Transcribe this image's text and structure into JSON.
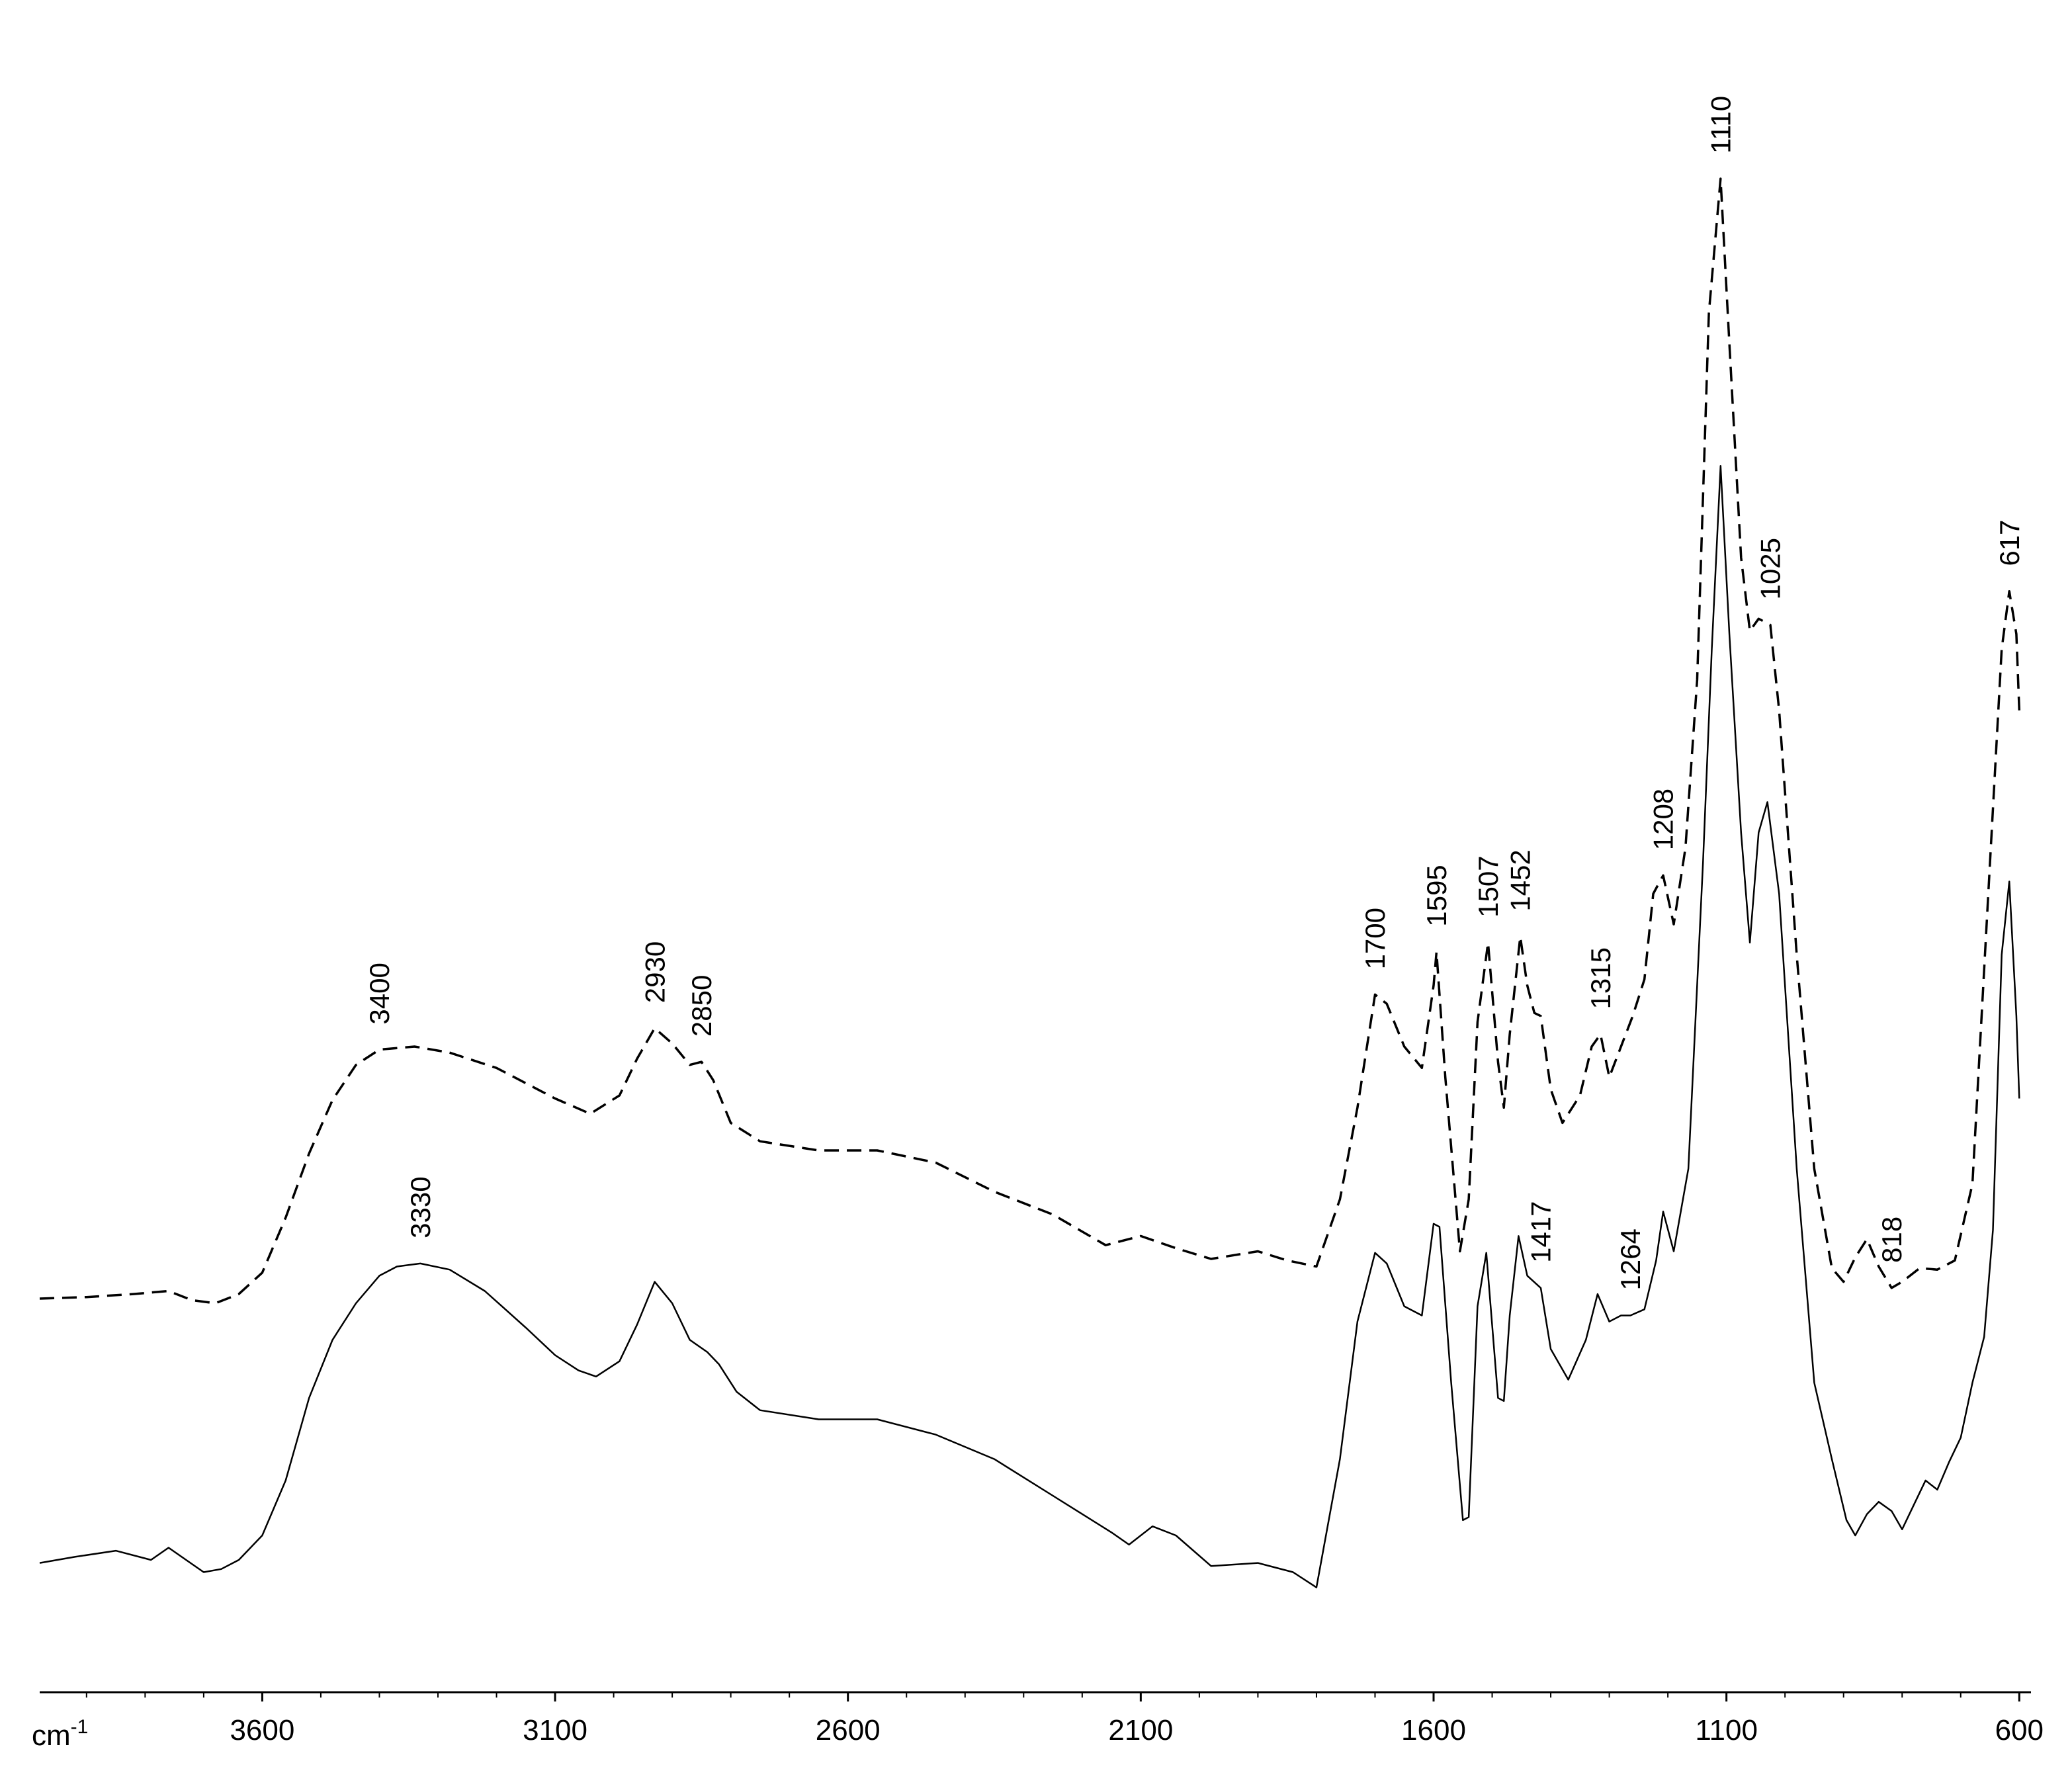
{
  "chart_data": {
    "type": "line",
    "title": "",
    "xlabel": "",
    "ylabel": "",
    "x_unit": {
      "base": "cm",
      "exp": "-1"
    },
    "xlim": [
      3980,
      580
    ],
    "ylim": [
      -0.04,
      1.0
    ],
    "x_reversed": true,
    "x_ticks": [
      {
        "value": 3600,
        "label": "3600"
      },
      {
        "value": 3100,
        "label": "3100"
      },
      {
        "value": 2600,
        "label": "2600"
      },
      {
        "value": 2100,
        "label": "2100"
      },
      {
        "value": 1600,
        "label": "1600"
      },
      {
        "value": 1100,
        "label": "1100"
      },
      {
        "value": 600,
        "label": "600"
      }
    ],
    "grid": false,
    "legend": "none",
    "series": [
      {
        "style": "dashed",
        "color": "#000000",
        "points": [
          [
            3980,
            0.215
          ],
          [
            3900,
            0.216
          ],
          [
            3820,
            0.218
          ],
          [
            3760,
            0.22
          ],
          [
            3720,
            0.214
          ],
          [
            3680,
            0.212
          ],
          [
            3640,
            0.218
          ],
          [
            3600,
            0.232
          ],
          [
            3560,
            0.268
          ],
          [
            3520,
            0.31
          ],
          [
            3480,
            0.345
          ],
          [
            3440,
            0.368
          ],
          [
            3400,
            0.378
          ],
          [
            3340,
            0.38
          ],
          [
            3280,
            0.376
          ],
          [
            3200,
            0.366
          ],
          [
            3100,
            0.346
          ],
          [
            3040,
            0.336
          ],
          [
            2990,
            0.348
          ],
          [
            2960,
            0.372
          ],
          [
            2930,
            0.392
          ],
          [
            2900,
            0.382
          ],
          [
            2870,
            0.368
          ],
          [
            2850,
            0.37
          ],
          [
            2830,
            0.358
          ],
          [
            2800,
            0.33
          ],
          [
            2750,
            0.318
          ],
          [
            2650,
            0.312
          ],
          [
            2550,
            0.312
          ],
          [
            2450,
            0.304
          ],
          [
            2350,
            0.285
          ],
          [
            2250,
            0.27
          ],
          [
            2160,
            0.25
          ],
          [
            2100,
            0.256
          ],
          [
            2040,
            0.248
          ],
          [
            1980,
            0.241
          ],
          [
            1900,
            0.246
          ],
          [
            1850,
            0.24
          ],
          [
            1800,
            0.236
          ],
          [
            1760,
            0.28
          ],
          [
            1730,
            0.34
          ],
          [
            1700,
            0.414
          ],
          [
            1680,
            0.408
          ],
          [
            1650,
            0.38
          ],
          [
            1620,
            0.366
          ],
          [
            1600,
            0.42
          ],
          [
            1595,
            0.442
          ],
          [
            1580,
            0.36
          ],
          [
            1555,
            0.246
          ],
          [
            1540,
            0.28
          ],
          [
            1525,
            0.396
          ],
          [
            1507,
            0.448
          ],
          [
            1490,
            0.37
          ],
          [
            1480,
            0.34
          ],
          [
            1470,
            0.388
          ],
          [
            1452,
            0.452
          ],
          [
            1440,
            0.42
          ],
          [
            1428,
            0.402
          ],
          [
            1417,
            0.4
          ],
          [
            1400,
            0.352
          ],
          [
            1380,
            0.33
          ],
          [
            1350,
            0.348
          ],
          [
            1330,
            0.38
          ],
          [
            1315,
            0.388
          ],
          [
            1300,
            0.36
          ],
          [
            1280,
            0.38
          ],
          [
            1260,
            0.4
          ],
          [
            1240,
            0.424
          ],
          [
            1225,
            0.48
          ],
          [
            1208,
            0.492
          ],
          [
            1190,
            0.46
          ],
          [
            1170,
            0.51
          ],
          [
            1150,
            0.62
          ],
          [
            1130,
            0.86
          ],
          [
            1110,
            0.948
          ],
          [
            1095,
            0.84
          ],
          [
            1075,
            0.7
          ],
          [
            1060,
            0.652
          ],
          [
            1045,
            0.66
          ],
          [
            1025,
            0.656
          ],
          [
            1010,
            0.6
          ],
          [
            980,
            0.44
          ],
          [
            950,
            0.3
          ],
          [
            920,
            0.235
          ],
          [
            900,
            0.226
          ],
          [
            880,
            0.242
          ],
          [
            860,
            0.254
          ],
          [
            840,
            0.236
          ],
          [
            818,
            0.222
          ],
          [
            800,
            0.226
          ],
          [
            770,
            0.235
          ],
          [
            740,
            0.234
          ],
          [
            710,
            0.24
          ],
          [
            680,
            0.29
          ],
          [
            650,
            0.5
          ],
          [
            630,
            0.64
          ],
          [
            617,
            0.678
          ],
          [
            605,
            0.65
          ],
          [
            600,
            0.6
          ]
        ]
      },
      {
        "style": "solid",
        "color": "#000000",
        "points": [
          [
            3980,
            0.042
          ],
          [
            3920,
            0.046
          ],
          [
            3850,
            0.05
          ],
          [
            3790,
            0.044
          ],
          [
            3760,
            0.052
          ],
          [
            3730,
            0.044
          ],
          [
            3700,
            0.036
          ],
          [
            3670,
            0.038
          ],
          [
            3640,
            0.044
          ],
          [
            3600,
            0.06
          ],
          [
            3560,
            0.096
          ],
          [
            3520,
            0.15
          ],
          [
            3480,
            0.188
          ],
          [
            3440,
            0.212
          ],
          [
            3400,
            0.23
          ],
          [
            3370,
            0.236
          ],
          [
            3330,
            0.238
          ],
          [
            3280,
            0.234
          ],
          [
            3220,
            0.22
          ],
          [
            3150,
            0.196
          ],
          [
            3100,
            0.178
          ],
          [
            3060,
            0.168
          ],
          [
            3030,
            0.164
          ],
          [
            2990,
            0.174
          ],
          [
            2960,
            0.198
          ],
          [
            2930,
            0.226
          ],
          [
            2900,
            0.212
          ],
          [
            2870,
            0.188
          ],
          [
            2840,
            0.18
          ],
          [
            2820,
            0.172
          ],
          [
            2790,
            0.154
          ],
          [
            2750,
            0.142
          ],
          [
            2650,
            0.136
          ],
          [
            2550,
            0.136
          ],
          [
            2450,
            0.126
          ],
          [
            2350,
            0.11
          ],
          [
            2250,
            0.086
          ],
          [
            2150,
            0.062
          ],
          [
            2120,
            0.054
          ],
          [
            2080,
            0.066
          ],
          [
            2040,
            0.06
          ],
          [
            1980,
            0.04
          ],
          [
            1900,
            0.042
          ],
          [
            1840,
            0.036
          ],
          [
            1800,
            0.026
          ],
          [
            1760,
            0.11
          ],
          [
            1730,
            0.2
          ],
          [
            1700,
            0.245
          ],
          [
            1680,
            0.238
          ],
          [
            1650,
            0.21
          ],
          [
            1620,
            0.204
          ],
          [
            1600,
            0.264
          ],
          [
            1590,
            0.262
          ],
          [
            1570,
            0.16
          ],
          [
            1550,
            0.07
          ],
          [
            1540,
            0.072
          ],
          [
            1525,
            0.21
          ],
          [
            1510,
            0.245
          ],
          [
            1490,
            0.15
          ],
          [
            1480,
            0.148
          ],
          [
            1470,
            0.204
          ],
          [
            1455,
            0.256
          ],
          [
            1440,
            0.23
          ],
          [
            1417,
            0.222
          ],
          [
            1400,
            0.182
          ],
          [
            1370,
            0.162
          ],
          [
            1340,
            0.188
          ],
          [
            1320,
            0.218
          ],
          [
            1300,
            0.2
          ],
          [
            1280,
            0.204
          ],
          [
            1264,
            0.204
          ],
          [
            1240,
            0.208
          ],
          [
            1220,
            0.24
          ],
          [
            1208,
            0.272
          ],
          [
            1190,
            0.246
          ],
          [
            1165,
            0.3
          ],
          [
            1140,
            0.5
          ],
          [
            1125,
            0.64
          ],
          [
            1110,
            0.76
          ],
          [
            1095,
            0.65
          ],
          [
            1075,
            0.52
          ],
          [
            1060,
            0.448
          ],
          [
            1045,
            0.52
          ],
          [
            1030,
            0.54
          ],
          [
            1010,
            0.48
          ],
          [
            980,
            0.3
          ],
          [
            950,
            0.16
          ],
          [
            920,
            0.11
          ],
          [
            895,
            0.07
          ],
          [
            880,
            0.06
          ],
          [
            860,
            0.074
          ],
          [
            840,
            0.082
          ],
          [
            818,
            0.076
          ],
          [
            800,
            0.064
          ],
          [
            780,
            0.08
          ],
          [
            760,
            0.096
          ],
          [
            740,
            0.09
          ],
          [
            720,
            0.108
          ],
          [
            700,
            0.124
          ],
          [
            680,
            0.16
          ],
          [
            660,
            0.19
          ],
          [
            645,
            0.26
          ],
          [
            630,
            0.44
          ],
          [
            617,
            0.488
          ],
          [
            605,
            0.4
          ],
          [
            600,
            0.346
          ]
        ]
      }
    ],
    "annotations": [
      {
        "label": "3400",
        "x": 3400,
        "y": 0.378,
        "series": 0
      },
      {
        "label": "2930",
        "x": 2930,
        "y": 0.392,
        "series": 0
      },
      {
        "label": "2850",
        "x": 2850,
        "y": 0.37,
        "series": 0
      },
      {
        "label": "3330",
        "x": 3330,
        "y": 0.238,
        "series": 1
      },
      {
        "label": "1700",
        "x": 1700,
        "y": 0.414,
        "series": 0
      },
      {
        "label": "1595",
        "x": 1595,
        "y": 0.442,
        "series": 0
      },
      {
        "label": "1507",
        "x": 1507,
        "y": 0.448,
        "series": 0
      },
      {
        "label": "1452",
        "x": 1452,
        "y": 0.452,
        "series": 0
      },
      {
        "label": "1417",
        "x": 1417,
        "y": 0.222,
        "series": 1
      },
      {
        "label": "1315",
        "x": 1315,
        "y": 0.388,
        "series": 0
      },
      {
        "label": "1264",
        "x": 1264,
        "y": 0.204,
        "series": 1
      },
      {
        "label": "1208",
        "x": 1208,
        "y": 0.492,
        "series": 0
      },
      {
        "label": "1110",
        "x": 1110,
        "y": 0.948,
        "series": 0
      },
      {
        "label": "1025",
        "x": 1025,
        "y": 0.656,
        "series": 0
      },
      {
        "label": "818",
        "x": 818,
        "y": 0.222,
        "series": 0
      },
      {
        "label": "617",
        "x": 617,
        "y": 0.678,
        "series": 0
      }
    ]
  }
}
